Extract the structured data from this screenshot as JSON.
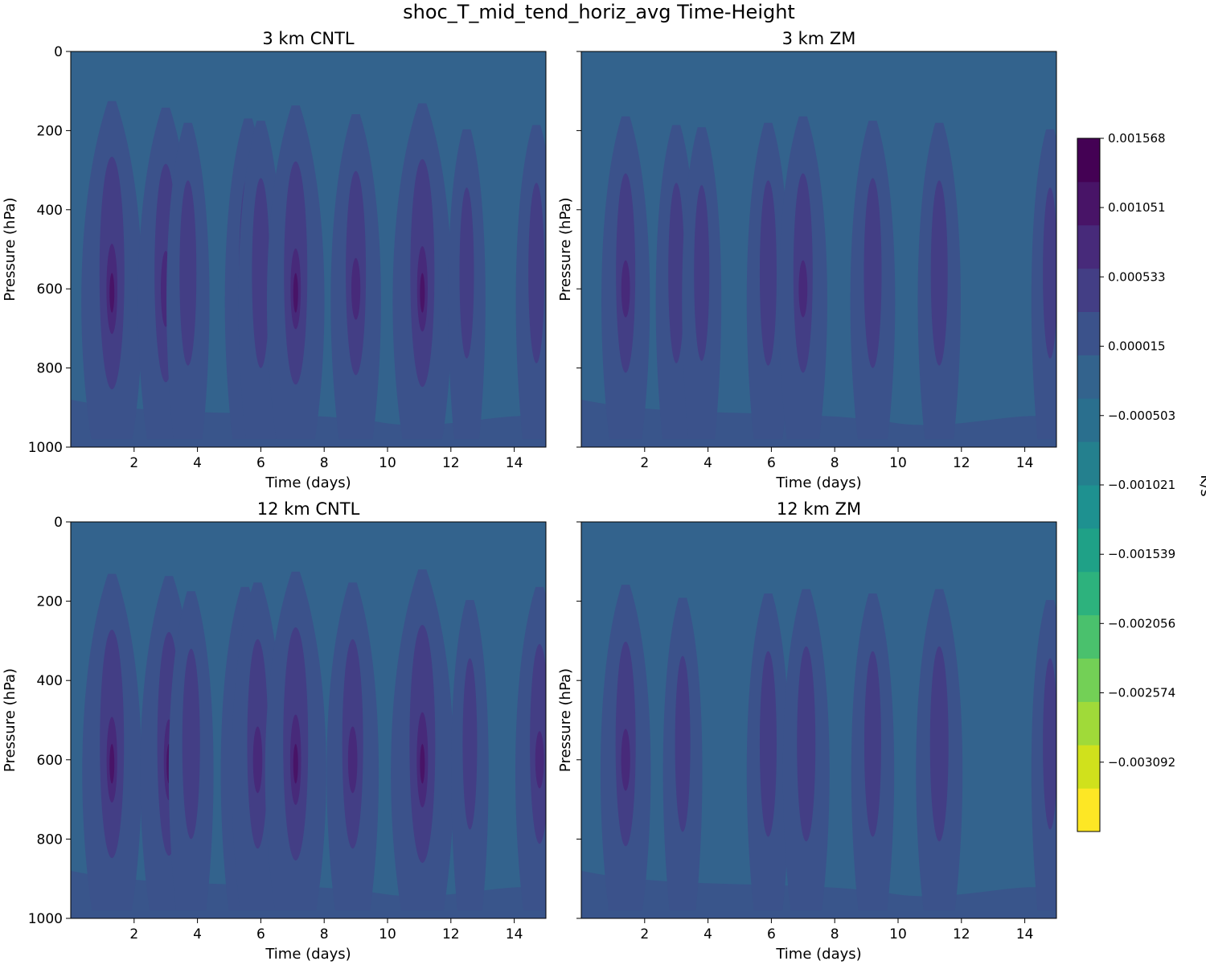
{
  "chart_data": {
    "type": "heatmap",
    "title": "shoc_T_mid_tend_horiz_avg Time-Height",
    "panels": [
      {
        "title": "3 km CNTL",
        "xlabel": "Time (days)",
        "ylabel": "Pressure (hPa)",
        "xlim": [
          0,
          15
        ],
        "ylim": [
          1000,
          0
        ],
        "xticks": [
          2,
          4,
          6,
          8,
          10,
          12,
          14
        ],
        "yticks": [
          0,
          200,
          400,
          600,
          800,
          1000
        ],
        "ytick_labels": true,
        "convective_events": [
          {
            "day": 1.3,
            "intensity": 0.95
          },
          {
            "day": 3.0,
            "intensity": 0.8
          },
          {
            "day": 3.7,
            "intensity": 0.45
          },
          {
            "day": 5.6,
            "intensity": 0.55
          },
          {
            "day": 6.0,
            "intensity": 0.5
          },
          {
            "day": 7.1,
            "intensity": 0.85
          },
          {
            "day": 9.0,
            "intensity": 0.65
          },
          {
            "day": 11.1,
            "intensity": 0.9
          },
          {
            "day": 12.5,
            "intensity": 0.3
          },
          {
            "day": 14.7,
            "intensity": 0.4
          }
        ]
      },
      {
        "title": "3 km ZM",
        "xlabel": "Time (days)",
        "ylabel": "Pressure (hPa)",
        "xlim": [
          0,
          15
        ],
        "ylim": [
          1000,
          0
        ],
        "xticks": [
          2,
          4,
          6,
          8,
          10,
          12,
          14
        ],
        "yticks": [
          0,
          200,
          400,
          600,
          800,
          1000
        ],
        "ytick_labels": false,
        "convective_events": [
          {
            "day": 1.4,
            "intensity": 0.6
          },
          {
            "day": 3.0,
            "intensity": 0.4
          },
          {
            "day": 3.8,
            "intensity": 0.35
          },
          {
            "day": 5.9,
            "intensity": 0.45
          },
          {
            "day": 7.0,
            "intensity": 0.6
          },
          {
            "day": 9.2,
            "intensity": 0.5
          },
          {
            "day": 11.3,
            "intensity": 0.45
          },
          {
            "day": 14.8,
            "intensity": 0.3
          }
        ]
      },
      {
        "title": "12 km CNTL",
        "xlabel": "Time (days)",
        "ylabel": "Pressure (hPa)",
        "xlim": [
          0,
          15
        ],
        "ylim": [
          1000,
          0
        ],
        "xticks": [
          2,
          4,
          6,
          8,
          10,
          12,
          14
        ],
        "yticks": [
          0,
          200,
          400,
          600,
          800,
          1000
        ],
        "ytick_labels": true,
        "convective_events": [
          {
            "day": 1.3,
            "intensity": 0.9
          },
          {
            "day": 3.1,
            "intensity": 0.85
          },
          {
            "day": 3.8,
            "intensity": 0.5
          },
          {
            "day": 5.5,
            "intensity": 0.6
          },
          {
            "day": 5.9,
            "intensity": 0.7
          },
          {
            "day": 7.1,
            "intensity": 0.95
          },
          {
            "day": 8.9,
            "intensity": 0.7
          },
          {
            "day": 11.1,
            "intensity": 1.0
          },
          {
            "day": 12.6,
            "intensity": 0.3
          },
          {
            "day": 14.8,
            "intensity": 0.6
          }
        ]
      },
      {
        "title": "12 km ZM",
        "xlabel": "Time (days)",
        "ylabel": "Pressure (hPa)",
        "xlim": [
          0,
          15
        ],
        "ylim": [
          1000,
          0
        ],
        "xticks": [
          2,
          4,
          6,
          8,
          10,
          12,
          14
        ],
        "yticks": [
          0,
          200,
          400,
          600,
          800,
          1000
        ],
        "ytick_labels": false,
        "convective_events": [
          {
            "day": 1.4,
            "intensity": 0.65
          },
          {
            "day": 3.2,
            "intensity": 0.35
          },
          {
            "day": 5.9,
            "intensity": 0.45
          },
          {
            "day": 7.1,
            "intensity": 0.55
          },
          {
            "day": 9.2,
            "intensity": 0.45
          },
          {
            "day": 11.3,
            "intensity": 0.55
          },
          {
            "day": 14.8,
            "intensity": 0.3
          }
        ]
      }
    ],
    "colorbar": {
      "label": "K/s",
      "vmin": -0.00361,
      "vmax": 0.001568,
      "tick_values": [
        0.001568,
        0.001051,
        0.000533,
        1.5e-05,
        -0.000503,
        -0.001021,
        -0.001539,
        -0.002056,
        -0.002574,
        -0.003092
      ],
      "tick_labels": [
        "0.001568",
        "0.001051",
        "0.000533",
        "0.000015",
        "−0.000503",
        "−0.001021",
        "−0.001539",
        "−0.002056",
        "−0.002574",
        "−0.003092"
      ],
      "level_colors": [
        "#fde725",
        "#d0e11c",
        "#a0da39",
        "#73d056",
        "#4ac16d",
        "#2db27d",
        "#1fa187",
        "#1e9190",
        "#24808e",
        "#2a6f8e",
        "#33638d",
        "#3b528b",
        "#433e85",
        "#472a7a",
        "#481467",
        "#440154"
      ],
      "background_level_color": "#33638d",
      "event_level_colors": [
        "#3b528b",
        "#433e85",
        "#472a7a",
        "#481467"
      ]
    }
  }
}
